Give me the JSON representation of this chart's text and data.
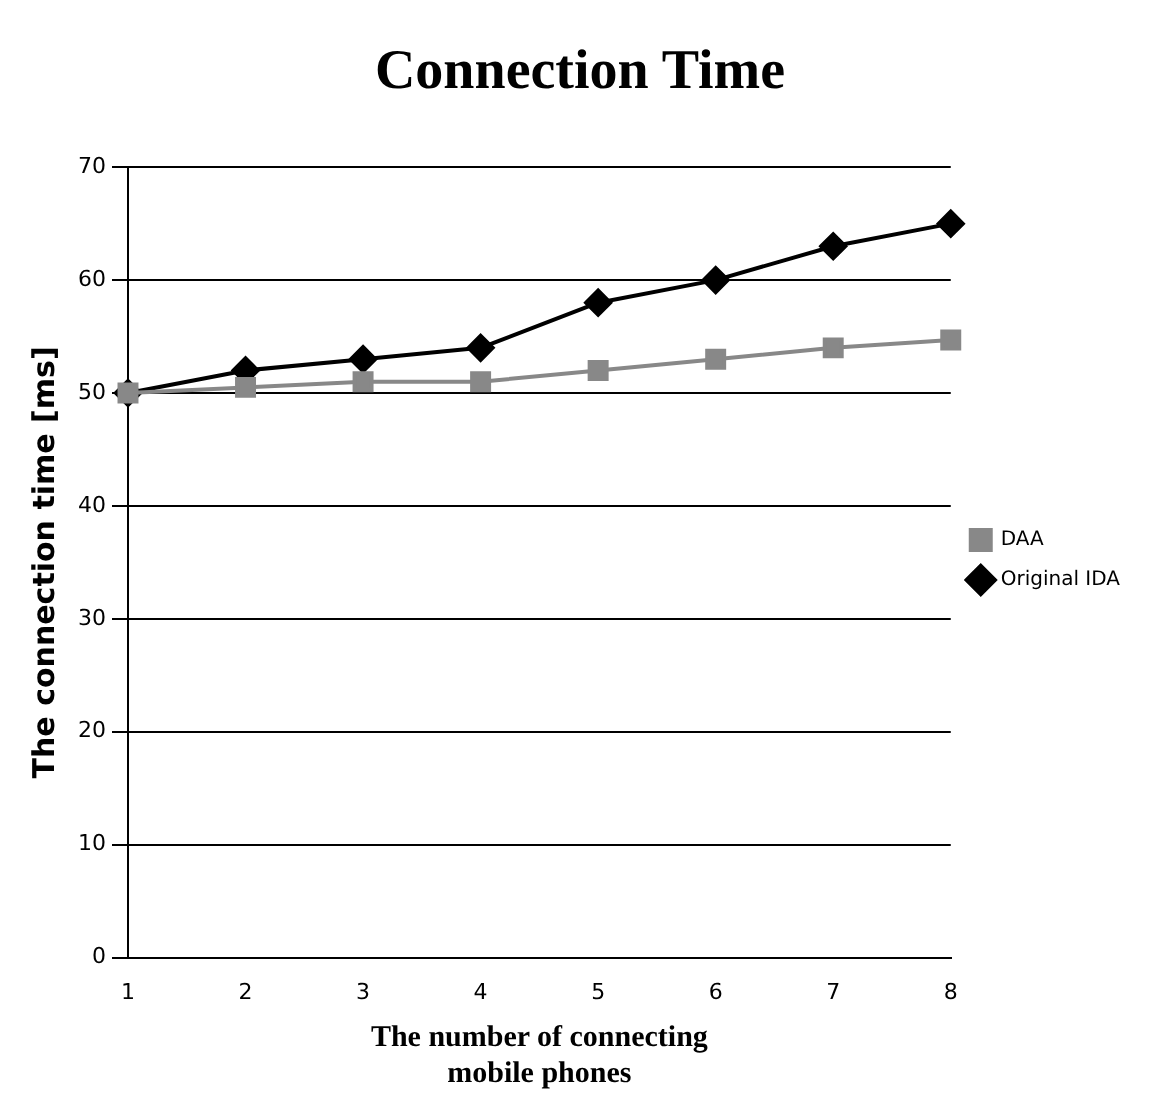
{
  "chart_data": {
    "type": "line",
    "title": "Connection Time",
    "xlabel": "The number of connecting\nmobile phones",
    "ylabel": "The connection time [ms]",
    "categories": [
      "1",
      "2",
      "3",
      "4",
      "5",
      "6",
      "7",
      "8"
    ],
    "series": [
      {
        "name": "Original IDA",
        "color": "#000000",
        "marker": "diamond",
        "values": [
          50,
          52,
          53,
          54,
          58,
          60,
          63,
          65
        ]
      },
      {
        "name": "DAA",
        "color": "#888888",
        "marker": "square",
        "values": [
          50,
          50.5,
          51,
          51,
          52,
          53,
          54,
          54.7
        ]
      }
    ],
    "ylim": [
      0,
      70
    ],
    "yticks": [
      0,
      10,
      20,
      30,
      40,
      50,
      60,
      70
    ],
    "grid": "y",
    "legend": "right",
    "line_style": "solid"
  }
}
